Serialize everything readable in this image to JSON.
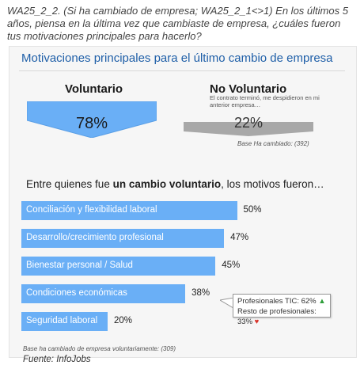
{
  "question": "WA25_2_2. (Si ha cambiado de empresa; WA25_2_1<>1) En los últimos 5 años, piensa en la última vez que cambiaste de empresa, ¿cuáles fueron tus motivaciones principales para hacerlo?",
  "panel_title": "Motivaciones principales para el último cambio de empresa",
  "voluntario": {
    "label": "Voluntario",
    "value": "78%"
  },
  "no_voluntario": {
    "label": "No Voluntario",
    "sublabel": "El contrato terminó, me despidieron en mi anterior empresa…",
    "value": "22%"
  },
  "base_cambiado": "Base Ha cambiado:  (392)",
  "subhead": {
    "pre": "Entre quienes fue ",
    "bold": "un cambio voluntario",
    "post": ", los motivos fueron…"
  },
  "tooltip": {
    "line1": "Profesionales TIC: 62%",
    "line2": "Resto de profesionales: 33%",
    "up_glyph": "▲",
    "down_glyph": "♥"
  },
  "base_voluntario": "Base ha cambiado de empresa voluntariamente:  (309)",
  "source": "Fuente: InfoJobs",
  "colors": {
    "bar": "#6aaff6",
    "title": "#1f5fa8",
    "up": "#2e9e3a",
    "down": "#d8332a",
    "gray": "#a8a8a8"
  },
  "chart_data": [
    {
      "type": "bar",
      "categories": [
        "Voluntario",
        "No Voluntario"
      ],
      "values": [
        78,
        22
      ],
      "title": "Motivaciones principales para el último cambio de empresa"
    },
    {
      "type": "bar",
      "orientation": "horizontal",
      "categories": [
        "Conciliación y flexibilidad laboral",
        "Desarrollo/crecimiento profesional",
        "Bienestar personal / Salud",
        "Condiciones económicas",
        "Seguridad laboral"
      ],
      "values": [
        50,
        47,
        45,
        38,
        20
      ],
      "value_labels": [
        "50%",
        "47%",
        "45%",
        "38%",
        "20%"
      ],
      "xlim": [
        0,
        100
      ]
    }
  ]
}
